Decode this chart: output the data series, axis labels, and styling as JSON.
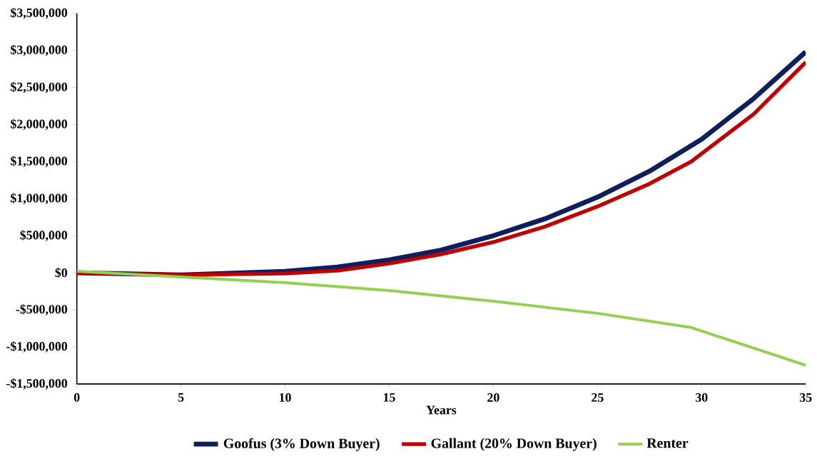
{
  "chart_data": {
    "type": "line",
    "xlabel": "Years",
    "xlim": [
      0,
      35
    ],
    "xticks": [
      0,
      5,
      10,
      15,
      20,
      25,
      30,
      35
    ],
    "ylim": [
      -1500000,
      3500000
    ],
    "yticks": [
      {
        "value": -1500000,
        "label": "-$1,500,000"
      },
      {
        "value": -1000000,
        "label": "-$1,000,000"
      },
      {
        "value": -500000,
        "label": "-$500,000"
      },
      {
        "value": 0,
        "label": "$0"
      },
      {
        "value": 500000,
        "label": "$500,000"
      },
      {
        "value": 1000000,
        "label": "$1,000,000"
      },
      {
        "value": 1500000,
        "label": "$1,500,000"
      },
      {
        "value": 2000000,
        "label": "$2,000,000"
      },
      {
        "value": 2500000,
        "label": "$2,500,000"
      },
      {
        "value": 3000000,
        "label": "$3,000,000"
      },
      {
        "value": 3500000,
        "label": "$3,500,000"
      }
    ],
    "grid": false,
    "legend": "bottom",
    "marker": "none",
    "line_style": "solid",
    "series": [
      {
        "name": "Goofus (3% Down Buyer)",
        "color": "#0d1f5c",
        "x": [
          0,
          5,
          10,
          12.5,
          15,
          17.5,
          20,
          22.5,
          25,
          27.5,
          30,
          32.5,
          35
        ],
        "values": [
          0,
          -29000,
          19000,
          77000,
          173000,
          307000,
          500000,
          730000,
          1020000,
          1370000,
          1800000,
          2350000,
          2980000
        ]
      },
      {
        "name": "Gallant (20% Down Buyer)",
        "color": "#c00000",
        "x": [
          0,
          5,
          10,
          12.5,
          15,
          17.5,
          20,
          22.5,
          25,
          27.5,
          29.5,
          32.5,
          35
        ],
        "values": [
          0,
          -30000,
          -10000,
          29000,
          125000,
          250000,
          413000,
          624000,
          893000,
          1200000,
          1500000,
          2140000,
          2840000
        ]
      },
      {
        "name": "Renter",
        "color": "#92d050",
        "x": [
          0,
          5,
          10,
          15,
          20,
          25,
          29.5,
          35
        ],
        "values": [
          20000,
          -57000,
          -134000,
          -240000,
          -384000,
          -547000,
          -739000,
          -1248000
        ]
      }
    ]
  }
}
